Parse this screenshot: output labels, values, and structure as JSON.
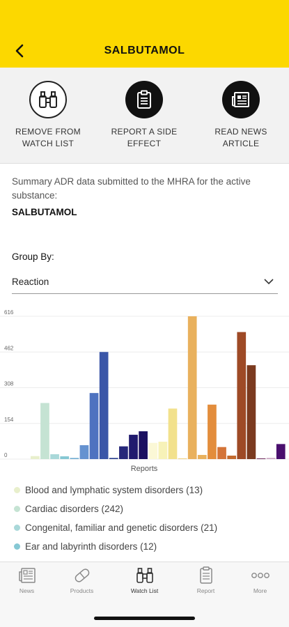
{
  "header": {
    "title": "SALBUTAMOL"
  },
  "actions": [
    {
      "label": "REMOVE FROM\nWATCH LIST",
      "icon": "binoculars-icon"
    },
    {
      "label": "REPORT A SIDE\nEFFECT",
      "icon": "clipboard-icon"
    },
    {
      "label": "READ NEWS\nARTICLE",
      "icon": "newspaper-icon"
    }
  ],
  "summary": {
    "text": "Summary ADR data submitted to the MHRA for the active substance:",
    "substance": "SALBUTAMOL"
  },
  "group_by": {
    "label": "Group By:",
    "value": "Reaction"
  },
  "chart_data": {
    "type": "bar",
    "xlabel": "Reports",
    "ylabel": "",
    "ylim": [
      0,
      616
    ],
    "yticks": [
      "616",
      "462",
      "308",
      "154",
      "0"
    ],
    "grid": true,
    "values": [
      {
        "value": 13,
        "color": "#e8efcc"
      },
      {
        "value": 242,
        "color": "#c5e3d3"
      },
      {
        "value": 21,
        "color": "#a9d8d9"
      },
      {
        "value": 12,
        "color": "#86c8d4"
      },
      {
        "value": 5,
        "color": "#73aed3"
      },
      {
        "value": 60,
        "color": "#6592d0"
      },
      {
        "value": 285,
        "color": "#4e72c0"
      },
      {
        "value": 462,
        "color": "#3a56a8"
      },
      {
        "value": 5,
        "color": "#2a3f8e"
      },
      {
        "value": 55,
        "color": "#26277a"
      },
      {
        "value": 105,
        "color": "#201a6e"
      },
      {
        "value": 120,
        "color": "#1b1060"
      },
      {
        "value": 70,
        "color": "#fbf8d6"
      },
      {
        "value": 75,
        "color": "#f7f2b8"
      },
      {
        "value": 218,
        "color": "#f2e18c"
      },
      {
        "value": 3,
        "color": "#eecf7c"
      },
      {
        "value": 616,
        "color": "#e9b15d"
      },
      {
        "value": 18,
        "color": "#e9b15d"
      },
      {
        "value": 235,
        "color": "#e38d3c"
      },
      {
        "value": 52,
        "color": "#d47438"
      },
      {
        "value": 15,
        "color": "#c36a2e"
      },
      {
        "value": 548,
        "color": "#9e4a26"
      },
      {
        "value": 405,
        "color": "#7b3a1f"
      },
      {
        "value": 3,
        "color": "#6e2a5b"
      },
      {
        "value": 5,
        "color": "#c9a3c0"
      },
      {
        "value": 65,
        "color": "#4a0f6e"
      }
    ]
  },
  "legend": [
    {
      "label": "Blood and lymphatic system disorders (13)",
      "color": "#e8efcc"
    },
    {
      "label": "Cardiac disorders (242)",
      "color": "#c5e3d3"
    },
    {
      "label": "Congenital, familiar and genetic disorders (21)",
      "color": "#a9d8d9"
    },
    {
      "label": "Ear and labyrinth disorders (12)",
      "color": "#86c8d4"
    }
  ],
  "tabs": [
    {
      "label": "News",
      "icon": "news-icon",
      "active": false
    },
    {
      "label": "Products",
      "icon": "pill-icon",
      "active": false
    },
    {
      "label": "Watch List",
      "icon": "binoculars-icon",
      "active": true
    },
    {
      "label": "Report",
      "icon": "clipboard-icon",
      "active": false
    },
    {
      "label": "More",
      "icon": "more-icon",
      "active": false
    }
  ]
}
